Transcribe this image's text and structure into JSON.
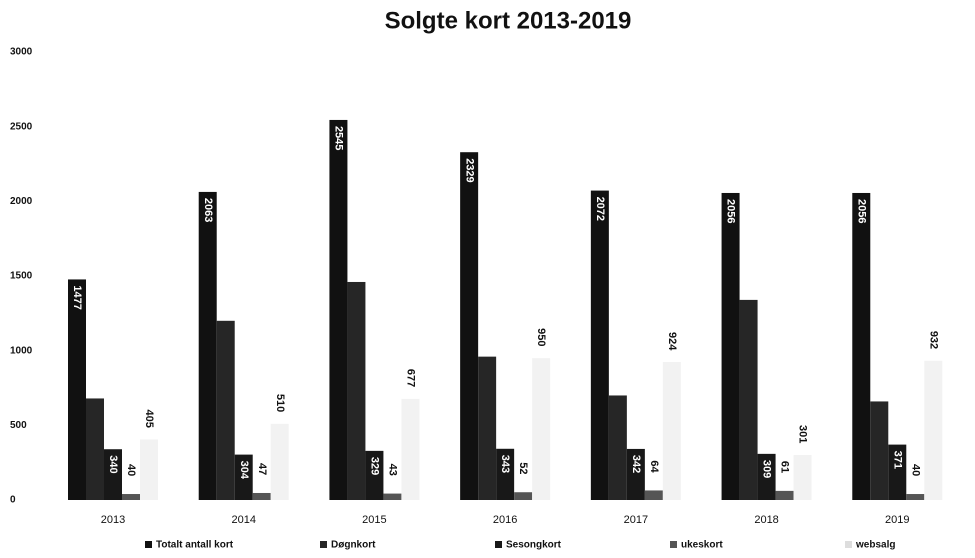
{
  "chart_data": {
    "type": "bar",
    "title": "Solgte kort 2013-2019",
    "categories": [
      "2013",
      "2014",
      "2015",
      "2016",
      "2017",
      "2018",
      "2019"
    ],
    "series": [
      {
        "name": "Totalt antall kort",
        "color": "#111111",
        "labels": "inside",
        "values": [
          1477,
          2063,
          2545,
          2329,
          2072,
          2056,
          2056
        ]
      },
      {
        "name": "Døgnkort",
        "color": "#262626",
        "values": [
          680,
          1200,
          1460,
          960,
          700,
          1340,
          660
        ]
      },
      {
        "name": "Sesongkort",
        "color": "#181818",
        "labels": "inside",
        "values": [
          340,
          304,
          329,
          343,
          342,
          309,
          371
        ]
      },
      {
        "name": "ukeskort",
        "color": "#555555",
        "labels": "outside",
        "values": [
          40,
          47,
          43,
          52,
          64,
          61,
          40
        ]
      },
      {
        "name": "websalg",
        "color": "#f2f2f2",
        "labels": "outside",
        "values": [
          405,
          510,
          677,
          950,
          924,
          301,
          932
        ]
      }
    ],
    "ylim": [
      0,
      3000
    ],
    "yticks": [
      0,
      500,
      1000,
      1500,
      2000,
      2500,
      3000
    ],
    "grid": false,
    "legend": "bottom"
  }
}
